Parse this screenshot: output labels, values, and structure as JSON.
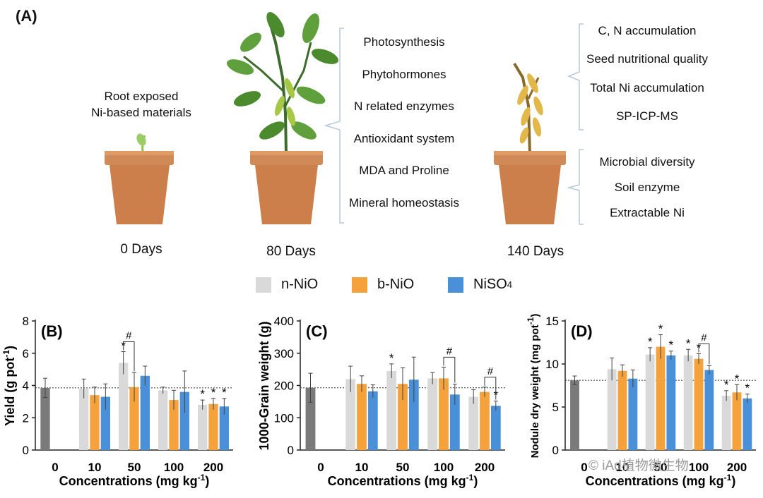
{
  "overview": {
    "label": "(A)",
    "root_text_1": "Root exposed",
    "root_text_2": "Ni-based materials",
    "days": [
      "0 Days",
      "80 Days",
      "140 Days"
    ],
    "processes_80": [
      "Photosynthesis",
      "Phytohormones",
      "N related enzymes",
      "Antioxidant system",
      "MDA and Proline",
      "Mineral homeostasis"
    ],
    "processes_140_top": [
      "C, N accumulation",
      "Seed nutritional quality",
      "Total Ni accumulation",
      "SP-ICP-MS"
    ],
    "processes_140_bottom": [
      "Microbial diversity",
      "Soil enzyme",
      "Extractable Ni"
    ]
  },
  "legend": {
    "items": [
      {
        "name": "n-NiO",
        "sub": "",
        "color": "#d9d9d9"
      },
      {
        "name": "b-NiO",
        "sub": "",
        "color": "#f5a23c"
      },
      {
        "name": "NiSO",
        "sub": "4",
        "color": "#4a90d9"
      }
    ]
  },
  "colors": {
    "control": "#7a7a7a",
    "n_NiO": "#d9d9d9",
    "b_NiO": "#f5a23c",
    "NiSO4": "#4a90d9"
  },
  "watermark": "© iAd植物微生物",
  "chart_data": [
    {
      "type": "bar",
      "panel_label": "(B)",
      "ylabel": "Yield (g pot",
      "ylabel_sup": "-1",
      "ylabel_end": ")",
      "xlabel": "Concentrations (mg kg",
      "xlabel_sup": "-1",
      "xlabel_end": ")",
      "categories": [
        "0",
        "10",
        "50",
        "100",
        "200"
      ],
      "ylim": [
        0,
        8
      ],
      "yticks": [
        "0",
        "2",
        "4",
        "6",
        "8"
      ],
      "control_mean": 3.85,
      "control": {
        "value": 3.85,
        "err": 0.6
      },
      "series": [
        {
          "name": "n-NiO",
          "values": [
            null,
            3.8,
            5.4,
            3.7,
            2.8
          ],
          "err": [
            null,
            0.6,
            0.7,
            0.2,
            0.3
          ],
          "sig": [
            null,
            "",
            "*",
            "",
            "*"
          ]
        },
        {
          "name": "b-NiO",
          "values": [
            null,
            3.4,
            3.9,
            3.1,
            2.85
          ],
          "err": [
            null,
            0.5,
            0.9,
            0.6,
            0.35
          ],
          "sig": [
            null,
            "",
            "",
            "",
            "*"
          ]
        },
        {
          "name": "NiSO4",
          "values": [
            null,
            3.3,
            4.6,
            3.6,
            2.7
          ],
          "err": [
            null,
            0.8,
            0.6,
            1.3,
            0.5
          ],
          "sig": [
            null,
            "",
            "",
            "",
            "*"
          ]
        }
      ],
      "brackets": [
        {
          "category": "50",
          "from": "n-NiO",
          "to": "b-NiO",
          "label": "#"
        }
      ]
    },
    {
      "type": "bar",
      "panel_label": "(C)",
      "ylabel": "1000-Grain weight (g)",
      "ylabel_sup": "",
      "ylabel_end": "",
      "xlabel": "Concentrations (mg kg",
      "xlabel_sup": "-1",
      "xlabel_end": ")",
      "categories": [
        "0",
        "10",
        "50",
        "100",
        "200"
      ],
      "ylim": [
        0,
        400
      ],
      "yticks": [
        "0",
        "100",
        "200",
        "300",
        "400"
      ],
      "control_mean": 193,
      "control": {
        "value": 193,
        "err": 45
      },
      "series": [
        {
          "name": "n-NiO",
          "values": [
            null,
            220,
            245,
            222,
            165
          ],
          "err": [
            null,
            40,
            22,
            18,
            22
          ],
          "sig": [
            null,
            "",
            "*",
            "",
            ""
          ]
        },
        {
          "name": "b-NiO",
          "values": [
            null,
            205,
            205,
            222,
            180
          ],
          "err": [
            null,
            25,
            50,
            35,
            15
          ],
          "sig": [
            null,
            "",
            "",
            "",
            ""
          ]
        },
        {
          "name": "NiSO4",
          "values": [
            null,
            182,
            218,
            172,
            137
          ],
          "err": [
            null,
            20,
            70,
            32,
            15
          ],
          "sig": [
            null,
            "",
            "",
            "",
            "*"
          ]
        }
      ],
      "brackets": [
        {
          "category": "100",
          "from": "b-NiO",
          "to": "NiSO4",
          "label": "#"
        },
        {
          "category": "200",
          "from": "b-NiO",
          "to": "NiSO4",
          "label": "#"
        }
      ]
    },
    {
      "type": "bar",
      "panel_label": "(D)",
      "ylabel": "Nodule dry weight (mg pot",
      "ylabel_sup": "-1",
      "ylabel_end": ")",
      "xlabel": "Concentrations (mg kg",
      "xlabel_sup": "-1",
      "xlabel_end": ")",
      "categories": [
        "0",
        "10",
        "50",
        "100",
        "200"
      ],
      "ylim": [
        0,
        15
      ],
      "yticks": [
        "0",
        "5",
        "10",
        "15"
      ],
      "control_mean": 8.1,
      "control": {
        "value": 8.1,
        "err": 0.5
      },
      "series": [
        {
          "name": "n-NiO",
          "values": [
            null,
            9.4,
            11.1,
            11.0,
            6.3
          ],
          "err": [
            null,
            1.3,
            0.8,
            0.7,
            0.6
          ],
          "sig": [
            null,
            "",
            "*",
            "*",
            "*"
          ]
        },
        {
          "name": "b-NiO",
          "values": [
            null,
            9.2,
            12.0,
            10.6,
            6.7
          ],
          "err": [
            null,
            0.7,
            1.4,
            0.6,
            0.9
          ],
          "sig": [
            null,
            "",
            "*",
            "*",
            "*"
          ]
        },
        {
          "name": "NiSO4",
          "values": [
            null,
            8.3,
            11.0,
            9.3,
            6.0
          ],
          "err": [
            null,
            1.0,
            0.5,
            0.5,
            0.5
          ],
          "sig": [
            null,
            "",
            "*",
            "",
            "*"
          ]
        }
      ],
      "brackets": [
        {
          "category": "100",
          "from": "b-NiO",
          "to": "NiSO4",
          "label": "#"
        }
      ]
    }
  ]
}
